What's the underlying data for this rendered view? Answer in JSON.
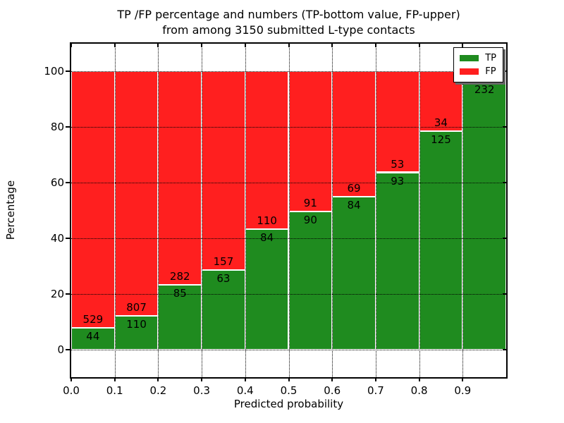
{
  "figure": {
    "title_line1": "TP /FP percentage and numbers (TP-bottom value, FP-upper)",
    "title_line2": "from among 3150 submitted L-type contacts"
  },
  "chart_data": {
    "type": "bar",
    "stacked": true,
    "normalized_to_percent": true,
    "title": "TP /FP percentage and numbers (TP-bottom value, FP-upper) from among 3150 submitted L-type contacts",
    "total_submitted_contacts": 3150,
    "xlabel": "Predicted probability",
    "ylabel": "Percentage",
    "xlim": [
      0.0,
      1.0
    ],
    "ylim": [
      -10,
      110
    ],
    "grid": "dotted",
    "colors": {
      "tp": "#1f8b1f",
      "fp": "#ff1f1f",
      "grid": "#000000",
      "bar_edge": "#ffffff"
    },
    "x_ticks": {
      "values": [
        0.0,
        0.1,
        0.2,
        0.3,
        0.4,
        0.5,
        0.6,
        0.7,
        0.8,
        0.9
      ],
      "labels": [
        "0.0",
        "0.1",
        "0.2",
        "0.3",
        "0.4",
        "0.5",
        "0.6",
        "0.7",
        "0.8",
        "0.9"
      ]
    },
    "y_ticks": {
      "values": [
        0,
        20,
        40,
        60,
        80,
        100
      ],
      "labels": [
        "0",
        "20",
        "40",
        "60",
        "80",
        "100"
      ]
    },
    "legend": {
      "position": "upper-right",
      "entries": [
        {
          "name": "TP",
          "color_key": "tp"
        },
        {
          "name": "FP",
          "color_key": "fp"
        }
      ]
    },
    "bars": [
      {
        "x_start": 0.0,
        "x_end": 0.1,
        "tp": 44,
        "fp": 529,
        "tp_label": "44",
        "fp_label": "529"
      },
      {
        "x_start": 0.1,
        "x_end": 0.2,
        "tp": 110,
        "fp": 807,
        "tp_label": "110",
        "fp_label": "807"
      },
      {
        "x_start": 0.2,
        "x_end": 0.3,
        "tp": 85,
        "fp": 282,
        "tp_label": "85",
        "fp_label": "282"
      },
      {
        "x_start": 0.3,
        "x_end": 0.4,
        "tp": 63,
        "fp": 157,
        "tp_label": "63",
        "fp_label": "157"
      },
      {
        "x_start": 0.4,
        "x_end": 0.5,
        "tp": 84,
        "fp": 110,
        "tp_label": "84",
        "fp_label": "110"
      },
      {
        "x_start": 0.5,
        "x_end": 0.6,
        "tp": 90,
        "fp": 91,
        "tp_label": "90",
        "fp_label": "91"
      },
      {
        "x_start": 0.6,
        "x_end": 0.7,
        "tp": 84,
        "fp": 69,
        "tp_label": "84",
        "fp_label": "69"
      },
      {
        "x_start": 0.7,
        "x_end": 0.8,
        "tp": 93,
        "fp": 53,
        "tp_label": "93",
        "fp_label": "53"
      },
      {
        "x_start": 0.8,
        "x_end": 0.9,
        "tp": 125,
        "fp": 34,
        "tp_label": "125",
        "fp_label": "34"
      },
      {
        "x_start": 0.9,
        "x_end": 1.0,
        "tp": 232,
        "fp": 8,
        "tp_label": "232",
        "fp_label": ""
      }
    ]
  }
}
